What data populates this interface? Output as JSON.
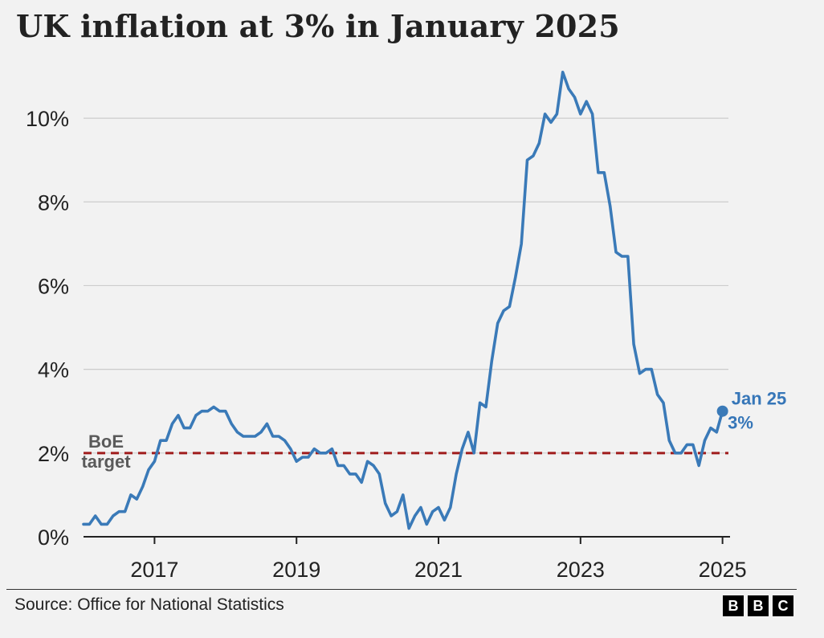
{
  "title": "UK inflation at 3% in January 2025",
  "source": "Source: Office for National Statistics",
  "logo_letters": [
    "B",
    "B",
    "C"
  ],
  "chart_data": {
    "type": "line",
    "title": "UK inflation at 3% in January 2025",
    "xlabel": "",
    "ylabel": "",
    "xlim": [
      "2016-01",
      "2025-02"
    ],
    "ylim": [
      0,
      11
    ],
    "x_ticks": [
      2017,
      2019,
      2021,
      2023,
      2025
    ],
    "y_ticks": [
      {
        "value": 0,
        "label": "0%"
      },
      {
        "value": 2,
        "label": "2%"
      },
      {
        "value": 4,
        "label": "4%"
      },
      {
        "value": 6,
        "label": "6%"
      },
      {
        "value": 8,
        "label": "8%"
      },
      {
        "value": 10,
        "label": "10%"
      }
    ],
    "grid": true,
    "colors": {
      "line": "#3a7ab8",
      "reference": "#a01c1c",
      "grid": "#cccccc",
      "axis": "#222222"
    },
    "reference_line": {
      "value": 2,
      "label_lines": [
        "BoE",
        "target"
      ],
      "style": "dashed"
    },
    "annotation": {
      "x": "2025-01",
      "y": 3.0,
      "label_lines": [
        "Jan 25",
        "3%"
      ]
    },
    "series": [
      {
        "x": [
          "2016-01",
          "2016-02",
          "2016-03",
          "2016-04",
          "2016-05",
          "2016-06",
          "2016-07",
          "2016-08",
          "2016-09",
          "2016-10",
          "2016-11",
          "2016-12",
          "2017-01",
          "2017-02",
          "2017-03",
          "2017-04",
          "2017-05",
          "2017-06",
          "2017-07",
          "2017-08",
          "2017-09",
          "2017-10",
          "2017-11",
          "2017-12",
          "2018-01",
          "2018-02",
          "2018-03",
          "2018-04",
          "2018-05",
          "2018-06",
          "2018-07",
          "2018-08",
          "2018-09",
          "2018-10",
          "2018-11",
          "2018-12",
          "2019-01",
          "2019-02",
          "2019-03",
          "2019-04",
          "2019-05",
          "2019-06",
          "2019-07",
          "2019-08",
          "2019-09",
          "2019-10",
          "2019-11",
          "2019-12",
          "2020-01",
          "2020-02",
          "2020-03",
          "2020-04",
          "2020-05",
          "2020-06",
          "2020-07",
          "2020-08",
          "2020-09",
          "2020-10",
          "2020-11",
          "2020-12",
          "2021-01",
          "2021-02",
          "2021-03",
          "2021-04",
          "2021-05",
          "2021-06",
          "2021-07",
          "2021-08",
          "2021-09",
          "2021-10",
          "2021-11",
          "2021-12",
          "2022-01",
          "2022-02",
          "2022-03",
          "2022-04",
          "2022-05",
          "2022-06",
          "2022-07",
          "2022-08",
          "2022-09",
          "2022-10",
          "2022-11",
          "2022-12",
          "2023-01",
          "2023-02",
          "2023-03",
          "2023-04",
          "2023-05",
          "2023-06",
          "2023-07",
          "2023-08",
          "2023-09",
          "2023-10",
          "2023-11",
          "2023-12",
          "2024-01",
          "2024-02",
          "2024-03",
          "2024-04",
          "2024-05",
          "2024-06",
          "2024-07",
          "2024-08",
          "2024-09",
          "2024-10",
          "2024-11",
          "2024-12",
          "2025-01"
        ],
        "values": [
          0.3,
          0.3,
          0.5,
          0.3,
          0.3,
          0.5,
          0.6,
          0.6,
          1.0,
          0.9,
          1.2,
          1.6,
          1.8,
          2.3,
          2.3,
          2.7,
          2.9,
          2.6,
          2.6,
          2.9,
          3.0,
          3.0,
          3.1,
          3.0,
          3.0,
          2.7,
          2.5,
          2.4,
          2.4,
          2.4,
          2.5,
          2.7,
          2.4,
          2.4,
          2.3,
          2.1,
          1.8,
          1.9,
          1.9,
          2.1,
          2.0,
          2.0,
          2.1,
          1.7,
          1.7,
          1.5,
          1.5,
          1.3,
          1.8,
          1.7,
          1.5,
          0.8,
          0.5,
          0.6,
          1.0,
          0.2,
          0.5,
          0.7,
          0.3,
          0.6,
          0.7,
          0.4,
          0.7,
          1.5,
          2.1,
          2.5,
          2.0,
          3.2,
          3.1,
          4.2,
          5.1,
          5.4,
          5.5,
          6.2,
          7.0,
          9.0,
          9.1,
          9.4,
          10.1,
          9.9,
          10.1,
          11.1,
          10.7,
          10.5,
          10.1,
          10.4,
          10.1,
          8.7,
          8.7,
          7.9,
          6.8,
          6.7,
          6.7,
          4.6,
          3.9,
          4.0,
          4.0,
          3.4,
          3.2,
          2.3,
          2.0,
          2.0,
          2.2,
          2.2,
          1.7,
          2.3,
          2.6,
          2.5,
          3.0
        ]
      }
    ]
  }
}
